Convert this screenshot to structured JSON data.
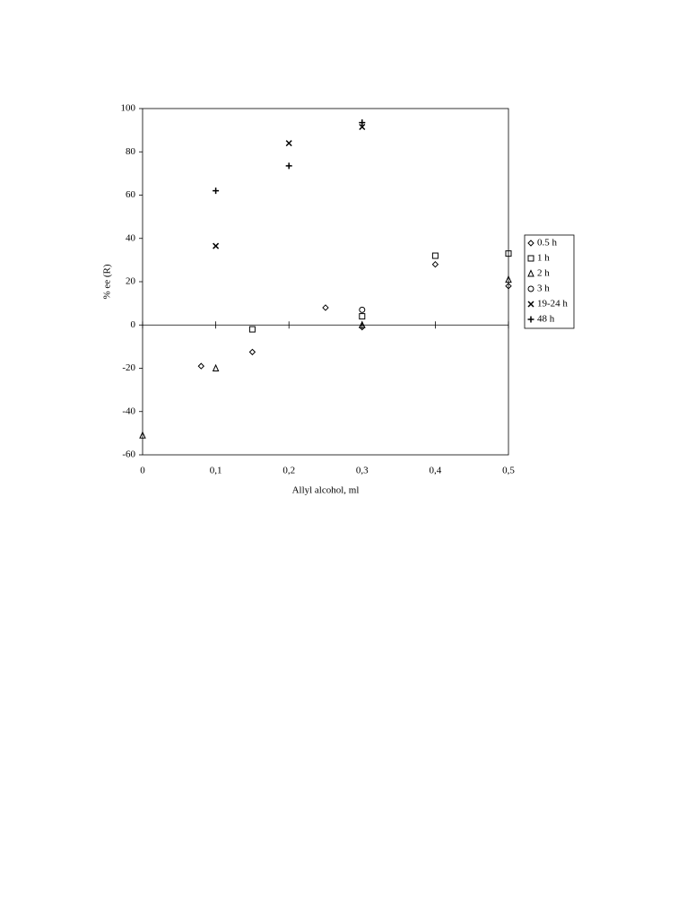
{
  "chart_data": {
    "type": "scatter",
    "x_label": "Allyl alcohol, ml",
    "y_label": "% ee (R)",
    "xlim": [
      0,
      0.5
    ],
    "ylim": [
      -60,
      100
    ],
    "xticks": [
      0,
      {
        "value": 0.1,
        "label": "0,1"
      },
      {
        "value": 0.2,
        "label": "0,2"
      },
      {
        "value": 0.3,
        "label": "0,3"
      },
      {
        "value": 0.4,
        "label": "0,4"
      },
      {
        "value": 0.5,
        "label": "0,5"
      }
    ],
    "yticks": [
      100,
      80,
      60,
      40,
      20,
      0,
      -20,
      -40,
      -60
    ],
    "grid": false,
    "legend": "right",
    "series": [
      {
        "name": "0.5 h",
        "color": "#000000",
        "marker": "diamond",
        "x": [
          0.08,
          0.15,
          0.25,
          0.3,
          0.4,
          0.5
        ],
        "values": [
          -19,
          -12.5,
          8,
          -1,
          28,
          18
        ]
      },
      {
        "name": "1 h",
        "color": "#000000",
        "marker": "square",
        "x": [
          0.15,
          0.3,
          0.4,
          0.5
        ],
        "values": [
          -2,
          4,
          32,
          33
        ]
      },
      {
        "name": "2 h",
        "color": "#000000",
        "marker": "triangle",
        "x": [
          0,
          0.1,
          0.3,
          0.5
        ],
        "values": [
          -51,
          -20,
          0,
          21
        ]
      },
      {
        "name": "3 h",
        "color": "#000000",
        "marker": "circle",
        "x": [
          0.3
        ],
        "values": [
          7
        ]
      },
      {
        "name": "19-24 h",
        "color": "#000000",
        "marker": "cross",
        "x": [
          0.1,
          0.2,
          0.3
        ],
        "values": [
          36.5,
          84,
          91.5
        ]
      },
      {
        "name": "48 h",
        "color": "#000000",
        "marker": "plus",
        "x": [
          0.1,
          0.2,
          0.3
        ],
        "values": [
          62,
          73.5,
          93.5
        ]
      }
    ]
  }
}
